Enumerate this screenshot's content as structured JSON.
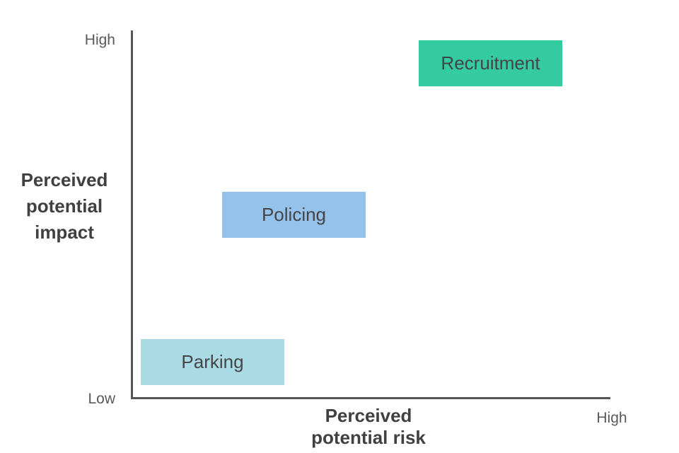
{
  "chart_data": {
    "type": "scatter",
    "title": "",
    "xlabel": "Perceived potential risk",
    "ylabel": "Perceived potential impact",
    "x_max_label": "High",
    "y_max_label": "High",
    "y_min_label": "Low",
    "x_range": [
      0,
      1
    ],
    "y_range": [
      0,
      1
    ],
    "grid": false,
    "legend_position": "none",
    "axis_color": "#56575a",
    "title_text_color": "#404042",
    "tick_text_color": "#58595b",
    "box_text_color": "#454547",
    "points": [
      {
        "label": "Recruitment",
        "x": 0.75,
        "y": 0.91,
        "color": "#35cba1"
      },
      {
        "label": "Policing",
        "x": 0.34,
        "y": 0.5,
        "color": "#95c2ea"
      },
      {
        "label": "Parking",
        "x": 0.17,
        "y": 0.1,
        "color": "#aadae4"
      }
    ]
  }
}
